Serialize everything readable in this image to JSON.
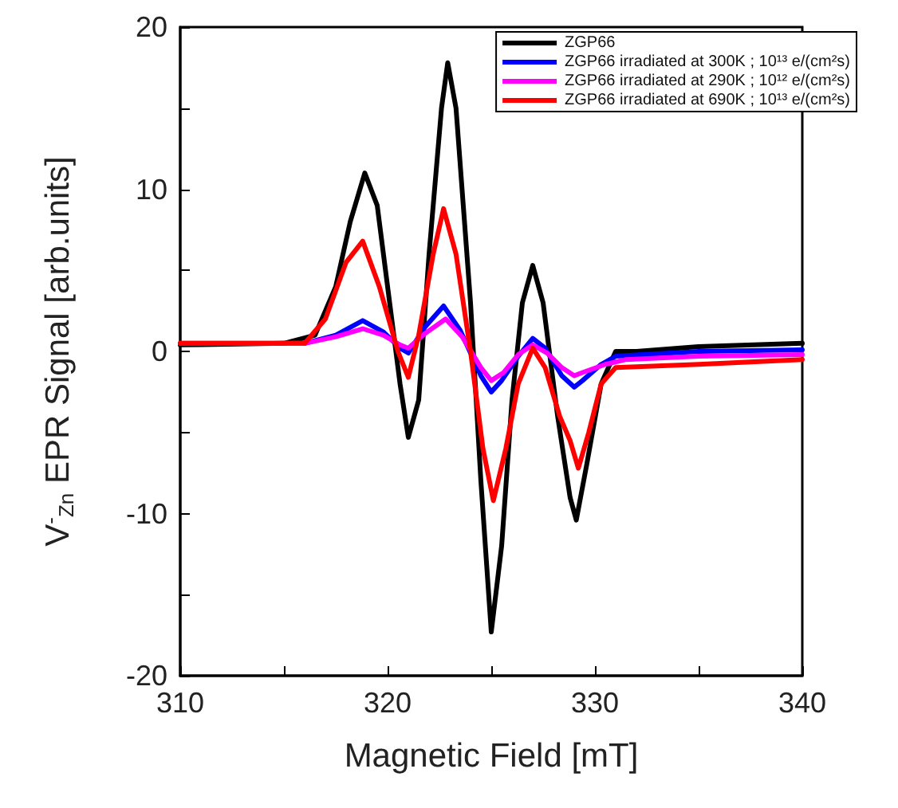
{
  "chart_data": {
    "type": "line",
    "xlabel": "Magnetic Field [mT]",
    "ylabel": "V$^{-}$$_{Zn}$ EPR Signal [arb.units]",
    "xlim": [
      310,
      340
    ],
    "xticks": [
      310,
      {
        "value": 315,
        "label": null
      },
      320,
      {
        "value": 325,
        "label": null
      },
      330,
      {
        "value": 335,
        "label": null
      },
      340
    ],
    "ylim": [
      -20,
      20
    ],
    "yticks": [
      -20,
      {
        "value": -15,
        "label": null
      },
      -10,
      {
        "value": -5,
        "label": null
      },
      0,
      {
        "value": 5,
        "label": null
      },
      10,
      {
        "value": 15,
        "label": null
      },
      20
    ],
    "grid": false,
    "legend": "top right",
    "marker": "none",
    "line_style": "solid",
    "series": [
      {
        "name": "ZGP66",
        "color": "#000000",
        "x": [
          310,
          315,
          316.5,
          317.5,
          318.2,
          318.9,
          319.5,
          320.2,
          320.6,
          321.0,
          321.5,
          322.0,
          322.6,
          322.9,
          323.3,
          324.0,
          324.5,
          325.0,
          325.5,
          326.0,
          326.5,
          327.0,
          327.5,
          328.2,
          328.8,
          329.1,
          329.6,
          330.3,
          331,
          332,
          335,
          340
        ],
        "values": [
          0.4,
          0.5,
          1,
          4,
          8,
          11,
          9,
          2,
          -2,
          -5.3,
          -3,
          6,
          15,
          17.8,
          15,
          3,
          -8,
          -17.3,
          -12,
          -3,
          3,
          5.3,
          3,
          -4,
          -9,
          -10.4,
          -7,
          -2,
          0,
          0,
          0.3,
          0.5
        ]
      },
      {
        "name": "ZGP66 irradiated at 300K ; 10¹³ e/(cm²s)",
        "color": "#0000ff",
        "x": [
          316,
          317.5,
          318.8,
          319.8,
          320.6,
          321.0,
          321.8,
          322.7,
          323.5,
          324.5,
          325.0,
          325.5,
          326.3,
          327.0,
          327.6,
          328.4,
          329.0,
          329.4,
          330.3,
          331,
          335,
          340
        ],
        "values": [
          0.5,
          1,
          1.9,
          1.2,
          0.2,
          -0.1,
          1.5,
          2.8,
          1.3,
          -1.5,
          -2.5,
          -1.8,
          -0.3,
          0.8,
          0.2,
          -1.5,
          -2.2,
          -1.8,
          -0.8,
          -0.3,
          0,
          0.1
        ]
      },
      {
        "name": "ZGP66 irradiated at 290K ; 10¹² e/(cm²s)",
        "color": "#ff00ff",
        "x": [
          310,
          316,
          317.5,
          318.8,
          319.8,
          320.6,
          321.0,
          321.8,
          322.8,
          323.6,
          324.5,
          325.0,
          325.6,
          326.3,
          327.0,
          327.7,
          328.4,
          329.0,
          329.4,
          330.5,
          331.5,
          335,
          340
        ],
        "values": [
          0.5,
          0.5,
          0.9,
          1.4,
          1.0,
          0.4,
          0.2,
          1.1,
          2.0,
          0.9,
          -1.0,
          -1.8,
          -1.3,
          -0.2,
          0.4,
          -0.1,
          -1.0,
          -1.5,
          -1.3,
          -0.8,
          -0.5,
          -0.3,
          -0.2
        ]
      },
      {
        "name": "ZGP66 irradiated at 690K ; 10¹³ e/(cm²s)",
        "color": "#ff0000",
        "x": [
          310,
          316,
          317,
          318,
          318.8,
          319.6,
          320.5,
          321.0,
          321.5,
          322.2,
          322.7,
          323.3,
          324.0,
          324.6,
          325.1,
          325.7,
          326.3,
          327.0,
          327.6,
          328.3,
          328.8,
          329.2,
          329.7,
          330.3,
          331,
          335,
          340
        ],
        "values": [
          0.5,
          0.5,
          2,
          5.5,
          6.8,
          4,
          0,
          -1.6,
          1,
          6,
          8.8,
          6,
          0,
          -6,
          -9.2,
          -6,
          -2,
          0.2,
          -1,
          -4,
          -5.5,
          -7.2,
          -5,
          -2,
          -1,
          -0.8,
          -0.5
        ]
      }
    ]
  }
}
